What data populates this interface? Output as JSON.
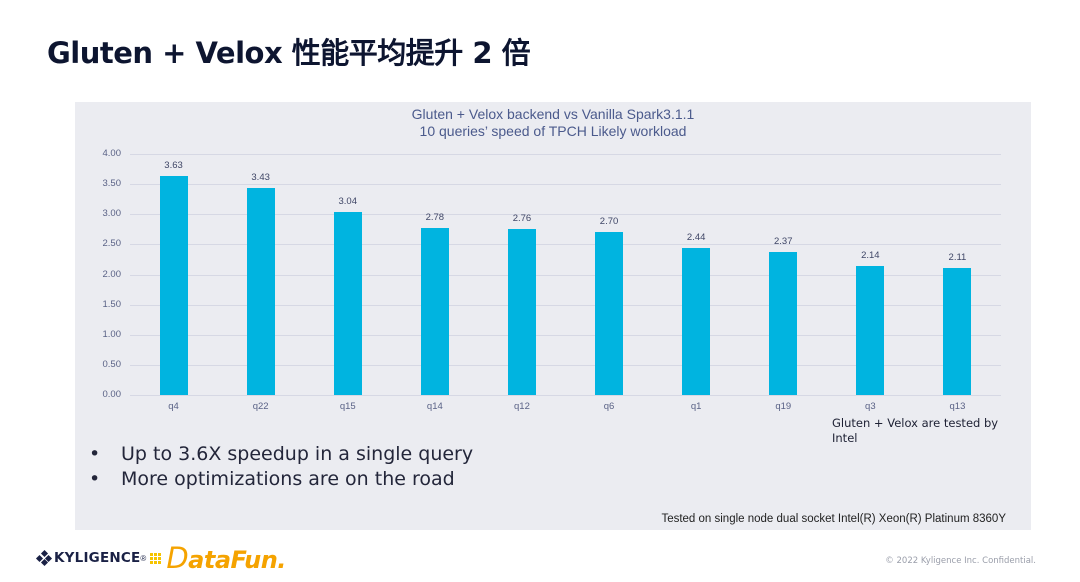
{
  "slide": {
    "title": "Gluten + Velox 性能平均提升 2 倍"
  },
  "chart_data": {
    "type": "bar",
    "title": "Gluten + Velox backend vs Vanilla Spark3.1.1",
    "subtitle": "10 queries’ speed of TPCH Likely workload",
    "xlabel": "",
    "ylabel": "",
    "categories": [
      "q4",
      "q22",
      "q15",
      "q14",
      "q12",
      "q6",
      "q1",
      "q19",
      "q3",
      "q13"
    ],
    "values": [
      3.63,
      3.43,
      3.04,
      2.78,
      2.76,
      2.7,
      2.44,
      2.37,
      2.14,
      2.11
    ],
    "value_labels": [
      "3.63",
      "3.43",
      "3.04",
      "2.78",
      "2.76",
      "2.70",
      "2.44",
      "2.37",
      "2.14",
      "2.11"
    ],
    "ylim": [
      0,
      4
    ],
    "yticks": [
      "0.00",
      "0.50",
      "1.00",
      "1.50",
      "2.00",
      "2.50",
      "3.00",
      "3.50",
      "4.00"
    ],
    "grid": true,
    "legend": "none",
    "bar_color": "#00b4e0"
  },
  "bullets": [
    "Up to 3.6X speedup in a single query",
    "More optimizations are on the road"
  ],
  "bullet_glyph": "•",
  "notes": {
    "intel": "Gluten + Velox are tested by Intel",
    "test_env": "Tested on single node dual socket Intel(R) Xeon(R) Platinum 8360Y"
  },
  "footer": {
    "kyligence_logo": "KYLIGENCE",
    "kyligence_reg": "®",
    "datafun_logo_d": "D",
    "datafun_logo_rest": "ataFun.",
    "copyright": "© 2022 Kyligence Inc. Confidential."
  },
  "colors": {
    "title": "#0d1530",
    "panel_bg": "#ebecf1",
    "bar": "#00b4e0",
    "chart_title": "#4b5a8c",
    "datafun": "#f5a300"
  }
}
